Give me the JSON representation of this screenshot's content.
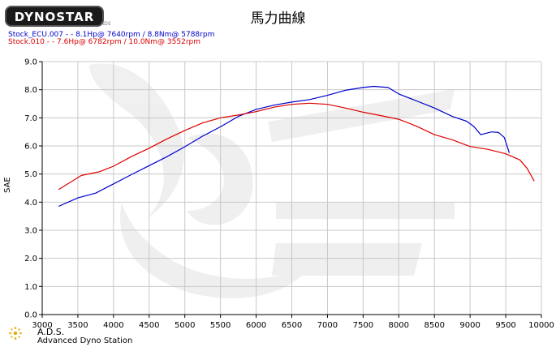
{
  "logo": {
    "text": "DYNOSTAR",
    "subtext": "ADS"
  },
  "chart_data": {
    "type": "line",
    "title": "馬力曲線",
    "xlabel": "",
    "ylabel": "SAE",
    "xlim": [
      3000,
      10000
    ],
    "ylim": [
      0,
      9
    ],
    "xticks": [
      3000,
      3500,
      4000,
      4500,
      5000,
      5500,
      6000,
      6500,
      7000,
      7500,
      8000,
      8500,
      9000,
      9500,
      10000
    ],
    "yticks": [
      "0.0",
      "1.0",
      "2.0",
      "3.0",
      "4.0",
      "5.0",
      "6.0",
      "7.0",
      "8.0",
      "9.0"
    ],
    "grid": true,
    "series": [
      {
        "name": "Stock_ECU.007",
        "legend": "Stock_ECU.007 -  - 8.1Hp@ 7640rpm / 8.8Nm@ 5788rpm",
        "color": "#0000cc",
        "x": [
          3230,
          3500,
          3750,
          4000,
          4250,
          4500,
          4750,
          5000,
          5250,
          5500,
          5750,
          6000,
          6250,
          6500,
          6750,
          7000,
          7250,
          7500,
          7650,
          7850,
          8000,
          8250,
          8500,
          8750,
          8950,
          9050,
          9150,
          9300,
          9400,
          9480,
          9550
        ],
        "y": [
          3.85,
          4.15,
          4.32,
          4.65,
          4.98,
          5.3,
          5.62,
          5.97,
          6.35,
          6.68,
          7.05,
          7.3,
          7.45,
          7.56,
          7.65,
          7.8,
          7.98,
          8.08,
          8.12,
          8.08,
          7.85,
          7.6,
          7.35,
          7.05,
          6.88,
          6.7,
          6.4,
          6.5,
          6.48,
          6.3,
          5.75
        ]
      },
      {
        "name": "Stock.010",
        "legend": "Stock.010 -  - 7.6Hp@ 6782rpm / 10.0Nm@ 3552rpm",
        "color": "#dd0000",
        "x": [
          3230,
          3550,
          3800,
          4000,
          4250,
          4500,
          4750,
          5000,
          5250,
          5500,
          5750,
          6000,
          6250,
          6500,
          6750,
          7000,
          7250,
          7500,
          7750,
          8000,
          8250,
          8500,
          8750,
          9000,
          9250,
          9500,
          9700,
          9800,
          9900
        ],
        "y": [
          4.45,
          4.95,
          5.08,
          5.28,
          5.62,
          5.92,
          6.25,
          6.55,
          6.82,
          7.0,
          7.1,
          7.22,
          7.38,
          7.48,
          7.52,
          7.48,
          7.35,
          7.2,
          7.08,
          6.95,
          6.7,
          6.4,
          6.22,
          5.98,
          5.88,
          5.72,
          5.5,
          5.2,
          4.75
        ]
      }
    ]
  },
  "footer": {
    "name": "A.D.S.",
    "description": "Advanced Dyno Station"
  }
}
